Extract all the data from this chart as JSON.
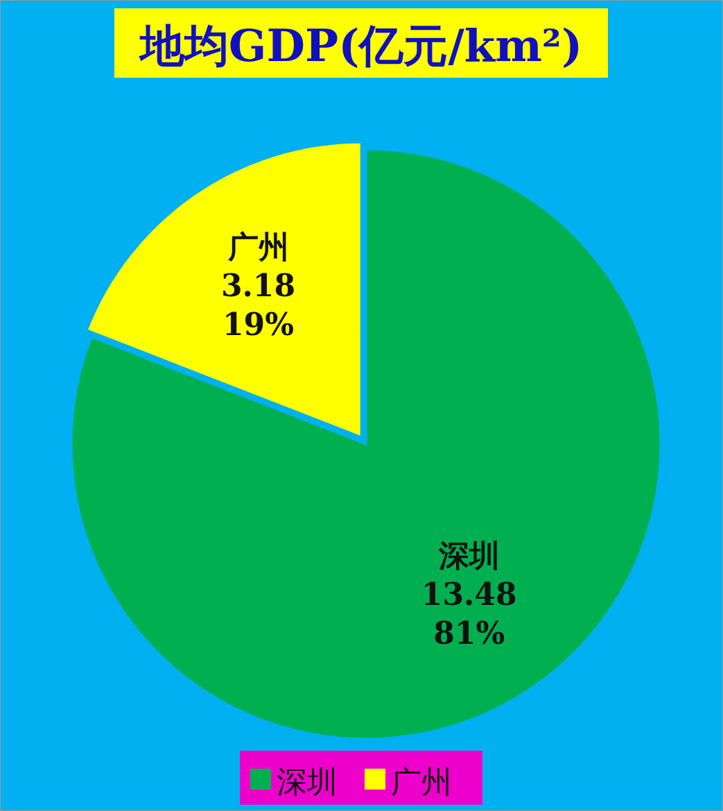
{
  "chart_data": {
    "type": "pie",
    "title": "地均GDP(亿元/km²)",
    "categories": [
      "深圳",
      "广州"
    ],
    "values": [
      13.48,
      3.18
    ],
    "colors": [
      "#00b050",
      "#ffff00"
    ],
    "value_labels": [
      "13.48\n81%",
      "3.18\n19%"
    ],
    "legend": "bottom"
  }
}
